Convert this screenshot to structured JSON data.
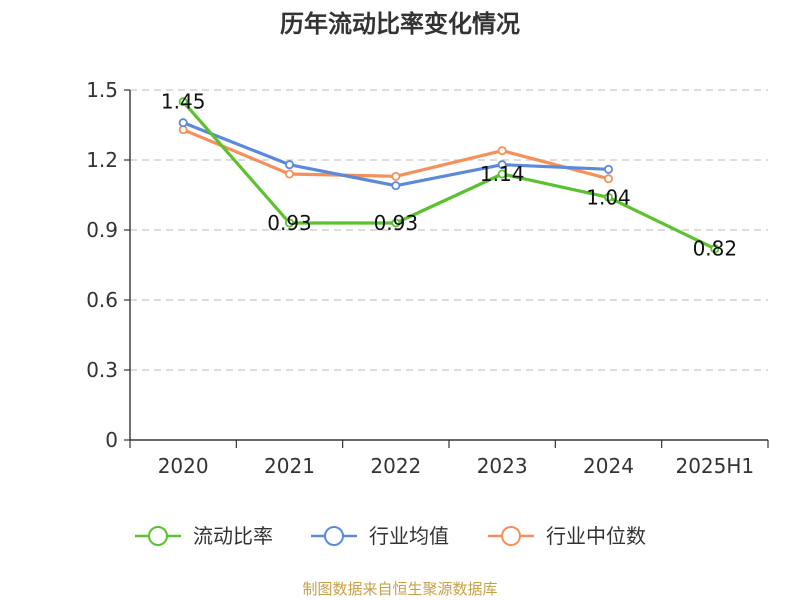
{
  "chart_data": {
    "type": "line",
    "title": "历年流动比率变化情况",
    "xlabel": "",
    "ylabel": "",
    "categories": [
      "2020",
      "2021",
      "2022",
      "2023",
      "2024",
      "2025H1"
    ],
    "ylim": [
      0,
      1.5
    ],
    "yticks": [
      0,
      0.3,
      0.6,
      0.9,
      1.2,
      1.5
    ],
    "ytick_labels": [
      "0",
      "0.3",
      "0.6",
      "0.9",
      "1.2",
      "1.5"
    ],
    "grid": true,
    "legend_position": "bottom",
    "series": [
      {
        "name": "流动比率",
        "color": "#5ac12f",
        "values": [
          1.45,
          0.93,
          0.93,
          1.14,
          1.04,
          0.82
        ],
        "labels": [
          "1.45",
          "0.93",
          "0.93",
          "1.14",
          "1.04",
          "0.82"
        ]
      },
      {
        "name": "行业均值",
        "color": "#5b8ad8",
        "values": [
          1.36,
          1.18,
          1.09,
          1.18,
          1.16,
          null
        ]
      },
      {
        "name": "行业中位数",
        "color": "#f5905a",
        "values": [
          1.33,
          1.14,
          1.13,
          1.24,
          1.12,
          null
        ]
      }
    ]
  },
  "source": "制图数据来自恒生聚源数据库"
}
